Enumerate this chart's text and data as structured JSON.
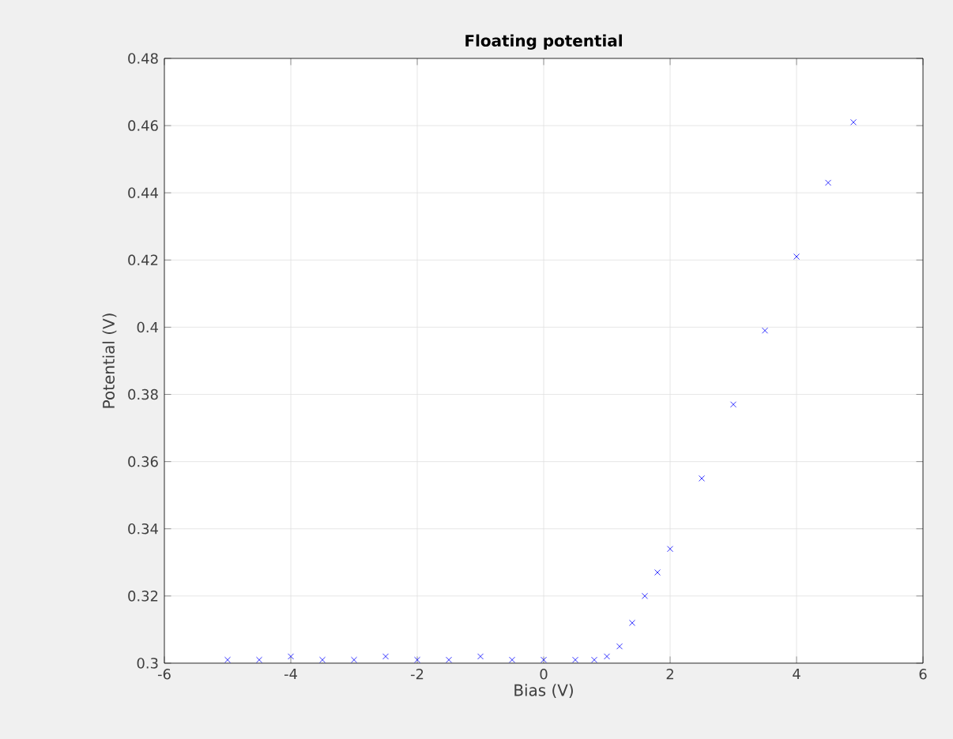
{
  "chart_data": {
    "type": "scatter",
    "title": "Floating potential",
    "xlabel": "Bias (V)",
    "ylabel": "Potential (V)",
    "series": [
      {
        "color": "#0000ff",
        "x": [
          -5.0,
          -4.5,
          -4.0,
          -3.5,
          -3.0,
          -2.5,
          -2.0,
          -1.5,
          -1.0,
          -0.5,
          0.0,
          0.5,
          0.8,
          1.0,
          1.2,
          1.4,
          1.6,
          1.8,
          2.0,
          2.5,
          3.0,
          3.5,
          4.0,
          4.5,
          4.9
        ],
        "values": [
          0.301,
          0.301,
          0.302,
          0.301,
          0.301,
          0.302,
          0.301,
          0.301,
          0.302,
          0.301,
          0.301,
          0.301,
          0.301,
          0.302,
          0.305,
          0.312,
          0.32,
          0.327,
          0.334,
          0.355,
          0.377,
          0.399,
          0.421,
          0.443,
          0.461
        ]
      }
    ],
    "xlim": [
      -6,
      6
    ],
    "xticks": [
      -6,
      -4,
      -2,
      0,
      2,
      4,
      6
    ],
    "ylim": [
      0.3,
      0.48
    ],
    "yticks": [
      0.3,
      0.32,
      0.34,
      0.36,
      0.38,
      0.4,
      0.42,
      0.44,
      0.46,
      0.48
    ],
    "grid": true,
    "marker": "cross"
  }
}
